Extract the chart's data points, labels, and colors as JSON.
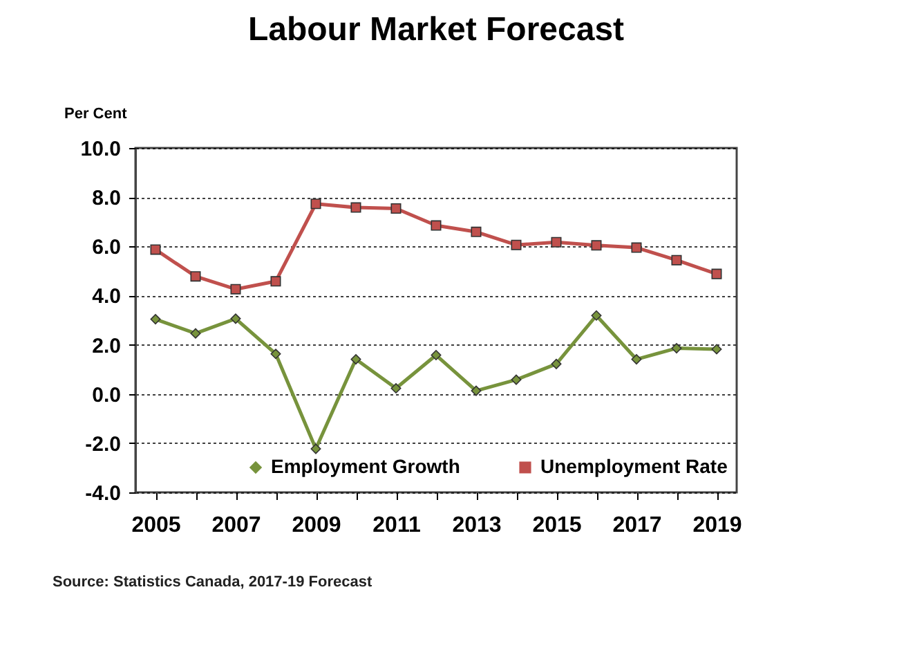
{
  "chart_data": {
    "type": "line",
    "title": "Labour Market Forecast",
    "ylabel": "Per Cent",
    "categories": [
      "2005",
      null,
      "2007",
      null,
      "2009",
      null,
      "2011",
      null,
      "2013",
      null,
      "2015",
      null,
      "2017",
      null,
      "2019"
    ],
    "series": [
      {
        "name": "Employment Growth",
        "color": "#77933c",
        "marker": "diamond",
        "values": [
          3.04,
          2.46,
          3.06,
          1.63,
          -2.23,
          1.41,
          0.23,
          1.58,
          0.13,
          0.58,
          1.22,
          3.19,
          1.41,
          1.86,
          1.82
        ]
      },
      {
        "name": "Unemployment Rate",
        "color": "#c0504d",
        "marker": "square",
        "values": [
          5.87,
          4.78,
          4.26,
          4.58,
          7.73,
          7.58,
          7.54,
          6.85,
          6.59,
          6.06,
          6.17,
          6.04,
          5.95,
          5.44,
          4.88
        ]
      }
    ],
    "ylim": [
      -4,
      10
    ],
    "yticks": [
      {
        "value": -4,
        "label": "-4.0"
      },
      {
        "value": -2,
        "label": "-2.0"
      },
      {
        "value": 0,
        "label": "0.0"
      },
      {
        "value": 2,
        "label": "2.0"
      },
      {
        "value": 4,
        "label": "4.0"
      },
      {
        "value": 6,
        "label": "6.0"
      },
      {
        "value": 8,
        "label": "8.0"
      },
      {
        "value": 10,
        "label": "10.0"
      }
    ],
    "grid": "y",
    "legend": "bottom",
    "line_style": "solid",
    "annotations": [
      "Source:  Statistics Canada, 2017-19 Forecast"
    ]
  }
}
